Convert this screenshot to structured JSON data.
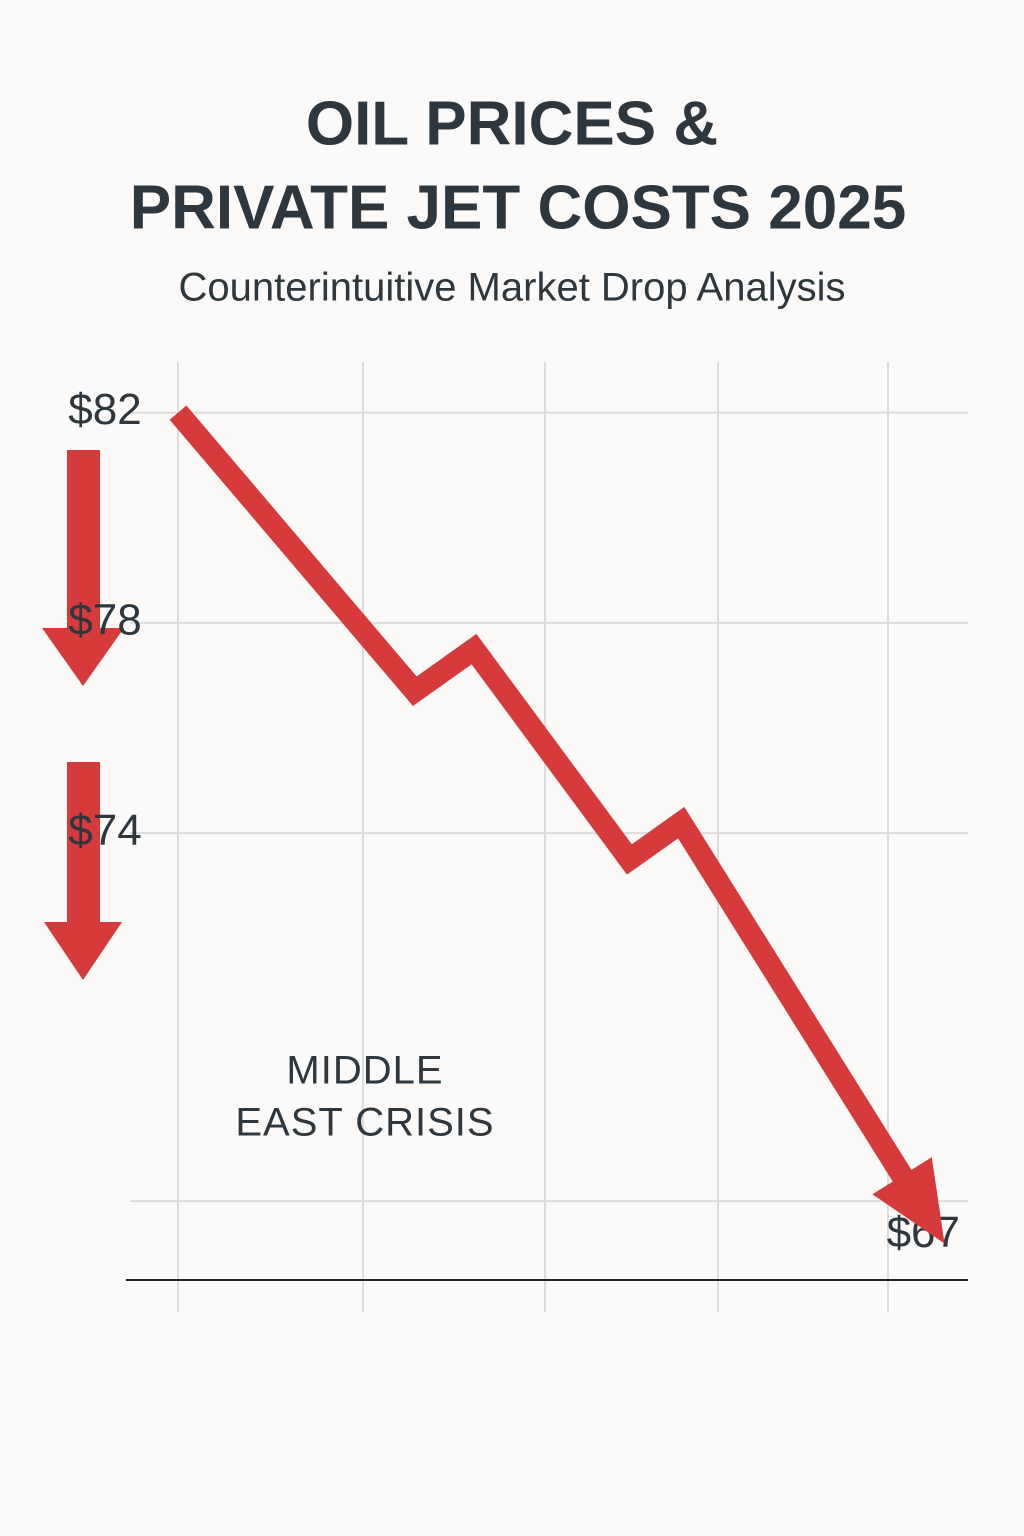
{
  "chart_data": {
    "type": "line",
    "title_lines": [
      "OIL PRICES &",
      "PRIVATE JET COSTS 2025"
    ],
    "subtitle": "Counterintuitive Market Drop Analysis",
    "x": [
      0,
      1.6,
      2.0,
      3.05,
      3.4,
      5
    ],
    "xlim": [
      0,
      5
    ],
    "series": [
      {
        "color": "#d63a3a",
        "values": [
          82,
          76.7,
          77.5,
          73.5,
          74.2,
          67
        ]
      }
    ],
    "ylim": [
      65.5,
      83
    ],
    "yticks": [
      {
        "value": 82,
        "label": "$82"
      },
      {
        "value": 78,
        "label": "$78"
      },
      {
        "value": 74,
        "label": "$74"
      },
      {
        "value": 67,
        "label": "$67"
      }
    ],
    "annotations": [
      "MIDDLE",
      "EAST CRISIS"
    ],
    "grid": true
  }
}
